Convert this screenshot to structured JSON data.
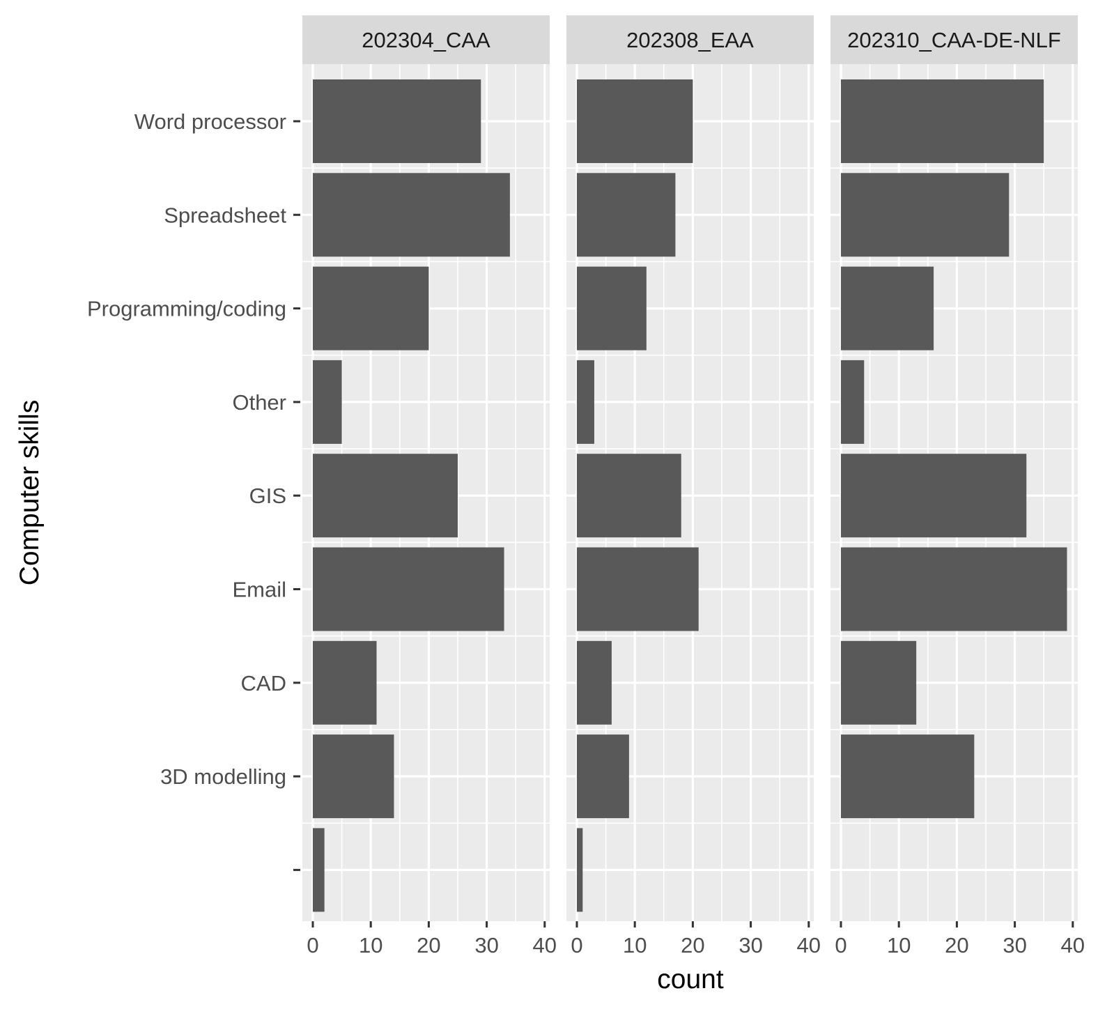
{
  "chart_data": {
    "type": "bar",
    "orientation": "horizontal",
    "facet_by": "survey",
    "categories": [
      "Word processor",
      "Spreadsheet",
      "Programming/coding",
      "Other",
      "GIS",
      "Email",
      "CAD",
      "3D modelling",
      ""
    ],
    "xlabel": "count",
    "ylabel": "Computer skills",
    "xlim": [
      0,
      40
    ],
    "xticks": [
      0,
      10,
      20,
      30,
      40
    ],
    "grid": true,
    "bar_color": "#595959",
    "panels": [
      {
        "name": "202304_CAA",
        "values": [
          29,
          34,
          20,
          5,
          25,
          33,
          11,
          14,
          2
        ]
      },
      {
        "name": "202308_EAA",
        "values": [
          20,
          17,
          12,
          3,
          18,
          21,
          6,
          9,
          1
        ]
      },
      {
        "name": "202310_CAA-DE-NLF",
        "values": [
          35,
          29,
          16,
          4,
          32,
          39,
          13,
          23,
          0
        ]
      }
    ]
  }
}
